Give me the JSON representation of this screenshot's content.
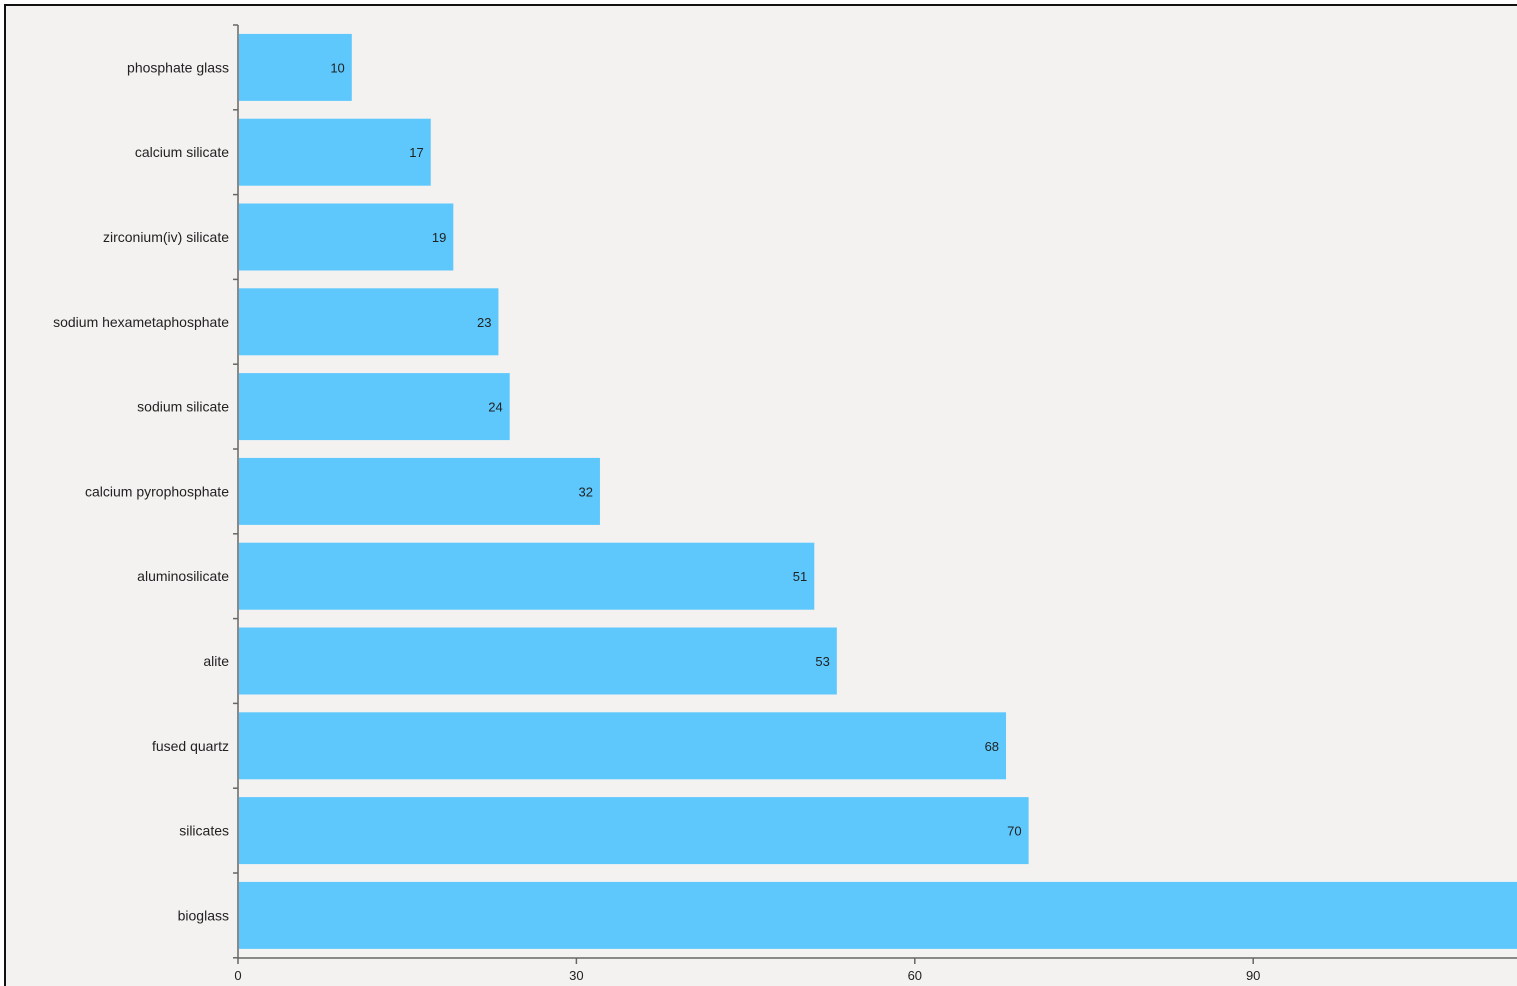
{
  "chart_data": {
    "type": "bar",
    "orientation": "horizontal",
    "categories": [
      "phosphate glass",
      "calcium silicate",
      "zirconium(iv) silicate",
      "sodium hexametaphosphate",
      "sodium silicate",
      "calcium pyrophosphate",
      "aluminosilicate",
      "alite",
      "fused quartz",
      "silicates",
      "bioglass"
    ],
    "values": [
      10,
      17,
      19,
      23,
      24,
      32,
      51,
      53,
      68,
      70,
      115
    ],
    "data_labels": [
      "10",
      "17",
      "19",
      "23",
      "24",
      "32",
      "51",
      "53",
      "68",
      "70",
      ""
    ],
    "x_ticks": [
      "0",
      "30",
      "60",
      "90"
    ],
    "xlim": [
      0,
      113
    ],
    "title": "",
    "xlabel": "",
    "ylabel": "",
    "grid": false,
    "bar_color": "#5ec8fd",
    "background_color": "#f4f2f1"
  }
}
